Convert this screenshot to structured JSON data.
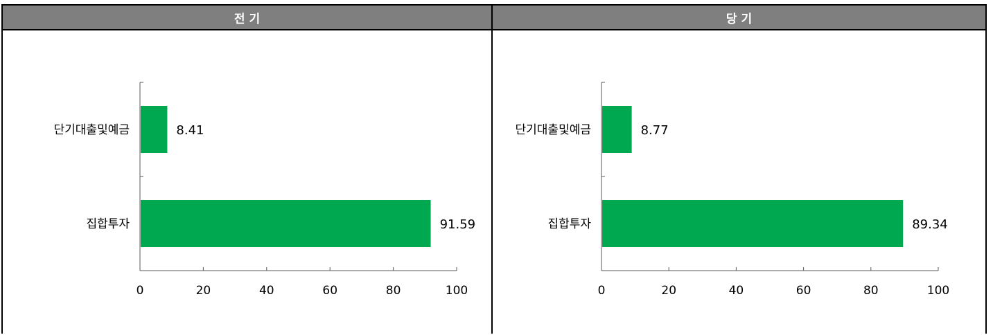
{
  "panels": [
    {
      "header": "전 기"
    },
    {
      "header": "당 기"
    }
  ],
  "chart_data": [
    {
      "type": "bar",
      "orientation": "horizontal",
      "title": "전 기",
      "categories": [
        "단기대출및예금",
        "집합투자"
      ],
      "values": [
        8.41,
        91.59
      ],
      "value_labels": [
        "8.41",
        "91.59"
      ],
      "xlim": [
        0,
        100
      ],
      "xticks": [
        0,
        20,
        40,
        60,
        80,
        100
      ],
      "bar_color": "#00a84f",
      "grid": false
    },
    {
      "type": "bar",
      "orientation": "horizontal",
      "title": "당 기",
      "categories": [
        "단기대출및예금",
        "집합투자"
      ],
      "values": [
        8.77,
        89.34
      ],
      "value_labels": [
        "8.77",
        "89.34"
      ],
      "xlim": [
        0,
        100
      ],
      "xticks": [
        0,
        20,
        40,
        60,
        80,
        100
      ],
      "bar_color": "#00a84f",
      "grid": false
    }
  ]
}
